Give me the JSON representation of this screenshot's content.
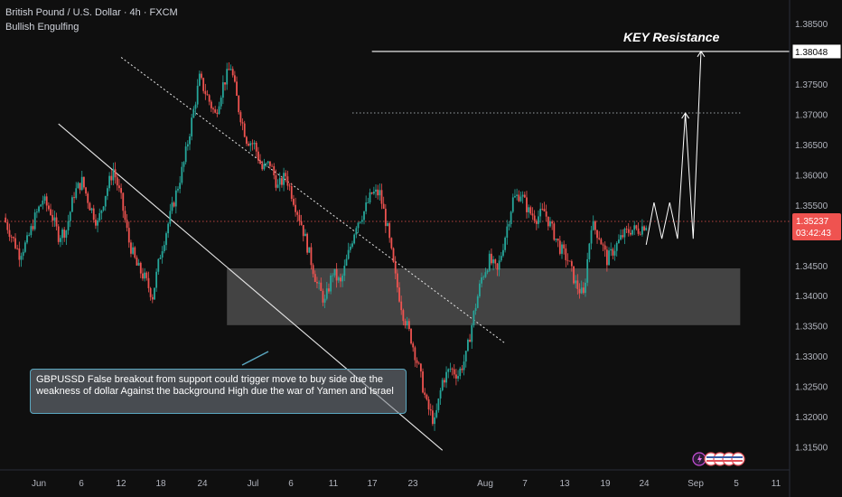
{
  "header": {
    "title": "British Pound / U.S. Dollar · 4h · FXCM",
    "indicator": "Bullish Engulfing"
  },
  "annotation": {
    "text": "GBPUSSD False breakout from support could trigger move to buy side due the weakness of dollar Against the background High due the war of Yamen and Israel"
  },
  "chart_data": {
    "type": "candlestick",
    "symbol": "GBPUSD",
    "timeframe": "4h",
    "ylim": [
      1.3135,
      1.3875
    ],
    "y_ticks": [
      1.385,
      1.375,
      1.37,
      1.365,
      1.36,
      1.355,
      1.345,
      1.34,
      1.335,
      1.33,
      1.325,
      1.32,
      1.315
    ],
    "x_ticks": [
      "Jun",
      "6",
      "12",
      "18",
      "24",
      "Jul",
      "6",
      "11",
      "17",
      "23",
      "Aug",
      "7",
      "13",
      "19",
      "24",
      "Sep",
      "5",
      "11"
    ],
    "price_path": [
      [
        0,
        1.353
      ],
      [
        1,
        1.35
      ],
      [
        2,
        1.347
      ],
      [
        3,
        1.349
      ],
      [
        4,
        1.353
      ],
      [
        5,
        1.356
      ],
      [
        6,
        1.354
      ],
      [
        7,
        1.35
      ],
      [
        8,
        1.351
      ],
      [
        9,
        1.357
      ],
      [
        10,
        1.359
      ],
      [
        11,
        1.355
      ],
      [
        12,
        1.352
      ],
      [
        13,
        1.357
      ],
      [
        14,
        1.361
      ],
      [
        15,
        1.356
      ],
      [
        16,
        1.349
      ],
      [
        17,
        1.345
      ],
      [
        18,
        1.343
      ],
      [
        19,
        1.34
      ],
      [
        20,
        1.347
      ],
      [
        21,
        1.352
      ],
      [
        22,
        1.357
      ],
      [
        23,
        1.362
      ],
      [
        24,
        1.369
      ],
      [
        25,
        1.376
      ],
      [
        26,
        1.373
      ],
      [
        27,
        1.37
      ],
      [
        28,
        1.375
      ],
      [
        29,
        1.378
      ],
      [
        30,
        1.371
      ],
      [
        31,
        1.366
      ],
      [
        32,
        1.365
      ],
      [
        33,
        1.361
      ],
      [
        34,
        1.362
      ],
      [
        35,
        1.358
      ],
      [
        36,
        1.36
      ],
      [
        37,
        1.356
      ],
      [
        38,
        1.352
      ],
      [
        39,
        1.347
      ],
      [
        40,
        1.342
      ],
      [
        41,
        1.339
      ],
      [
        42,
        1.344
      ],
      [
        43,
        1.342
      ],
      [
        44,
        1.347
      ],
      [
        45,
        1.352
      ],
      [
        46,
        1.354
      ],
      [
        47,
        1.357
      ],
      [
        48,
        1.357
      ],
      [
        49,
        1.351
      ],
      [
        50,
        1.343
      ],
      [
        51,
        1.337
      ],
      [
        52,
        1.333
      ],
      [
        53,
        1.328
      ],
      [
        54,
        1.322
      ],
      [
        55,
        1.319
      ],
      [
        56,
        1.326
      ],
      [
        57,
        1.328
      ],
      [
        58,
        1.327
      ],
      [
        59,
        1.33
      ],
      [
        60,
        1.337
      ],
      [
        61,
        1.343
      ],
      [
        62,
        1.346
      ],
      [
        63,
        1.344
      ],
      [
        64,
        1.35
      ],
      [
        65,
        1.356
      ],
      [
        66,
        1.357
      ],
      [
        67,
        1.354
      ],
      [
        68,
        1.353
      ],
      [
        69,
        1.354
      ],
      [
        70,
        1.351
      ],
      [
        71,
        1.348
      ],
      [
        72,
        1.346
      ],
      [
        73,
        1.342
      ],
      [
        74,
        1.34
      ],
      [
        75,
        1.352
      ],
      [
        76,
        1.35
      ],
      [
        77,
        1.346
      ],
      [
        78,
        1.348
      ],
      [
        79,
        1.35
      ],
      [
        80,
        1.351
      ],
      [
        81,
        1.351
      ],
      [
        82,
        1.352
      ]
    ],
    "last_price": "1.35237",
    "countdown": "03:42:43",
    "key_resistance": {
      "label": "KEY Resistance",
      "value": 1.38048,
      "value_label": "1.38048"
    },
    "upper_dotted_level": 1.3703,
    "support_zone": [
      1.3352,
      1.3446
    ],
    "trendlines": [
      {
        "style": "solid",
        "from": [
          7,
          1.3685
        ],
        "to": [
          56,
          1.3145
        ]
      },
      {
        "style": "dotted",
        "from": [
          15,
          1.3795
        ],
        "to": [
          64,
          1.3322
        ]
      }
    ],
    "projection": [
      [
        82,
        1.3485
      ],
      [
        83,
        1.3555
      ],
      [
        84,
        1.3495
      ],
      [
        85,
        1.3555
      ],
      [
        86,
        1.3495
      ],
      [
        87,
        1.3703
      ],
      [
        88,
        1.3495
      ],
      [
        89,
        1.3805
      ]
    ],
    "colors": {
      "up": "#26a69a",
      "down": "#ef5350",
      "last_price_label": "#ef5350",
      "background": "#0f0f0f"
    }
  }
}
